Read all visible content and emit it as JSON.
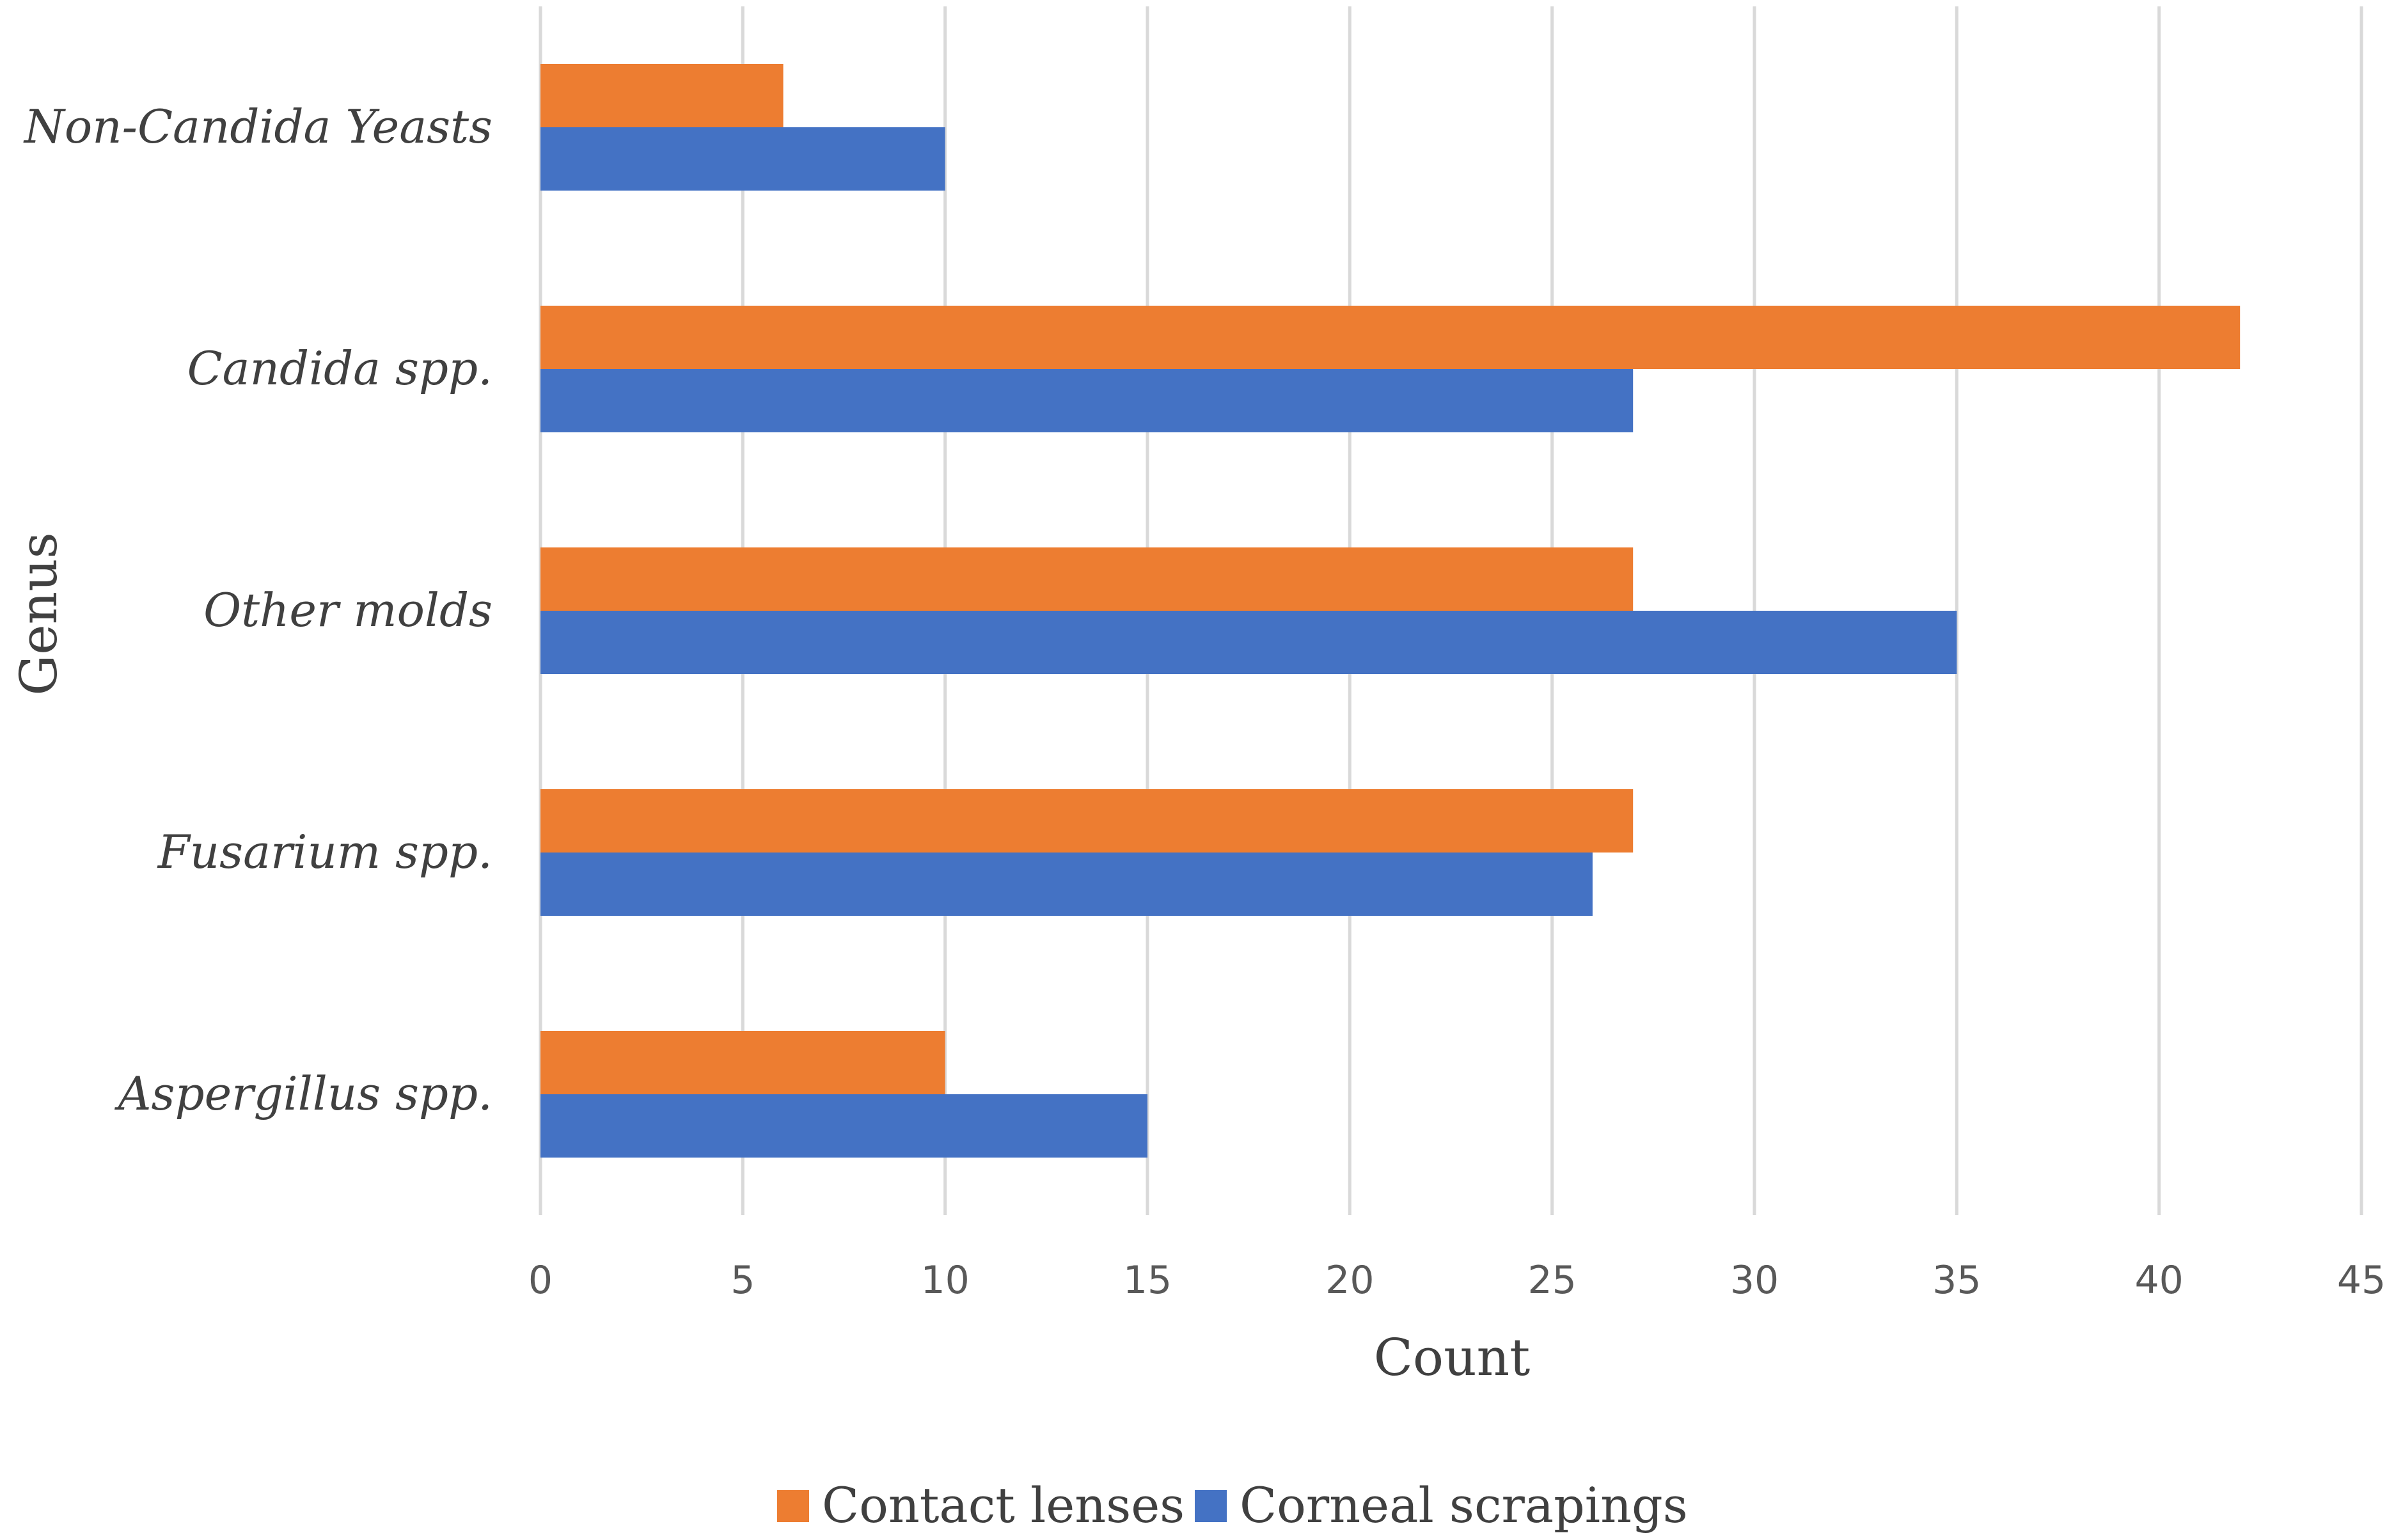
{
  "chart_data": {
    "type": "bar",
    "orientation": "horizontal",
    "title": "",
    "xlabel": "Count",
    "ylabel": "Genus",
    "xlim": [
      0,
      45
    ],
    "xticks": [
      0,
      5,
      10,
      15,
      20,
      25,
      30,
      35,
      40,
      45
    ],
    "grid": "vertical",
    "legend": "bottom",
    "categories": [
      "Aspergillus spp.",
      "Fusarium spp.",
      "Other molds",
      "Candida spp.",
      "Non-Candida Yeasts"
    ],
    "series": [
      {
        "name": "Contact lenses",
        "color": "#ED7D31",
        "values": [
          10,
          27,
          27,
          42,
          6
        ]
      },
      {
        "name": "Corneal scrapings",
        "color": "#4472C4",
        "values": [
          15,
          26,
          35,
          27,
          10
        ]
      }
    ]
  }
}
